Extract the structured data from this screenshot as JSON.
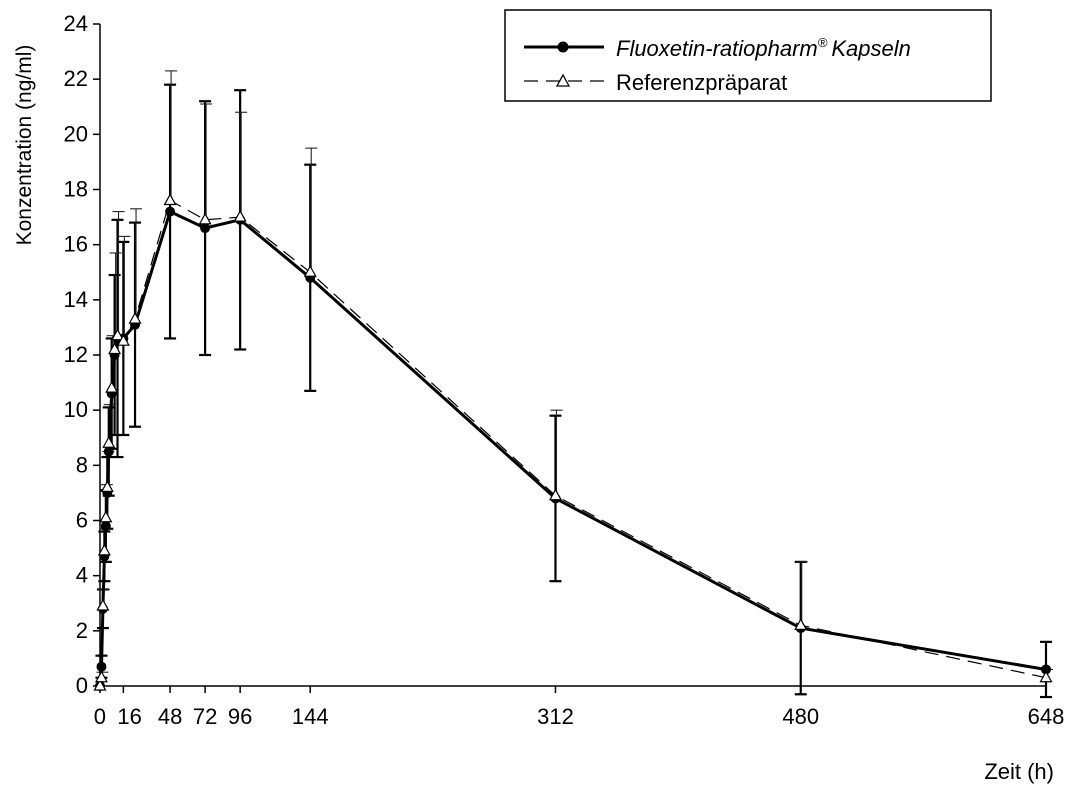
{
  "chart_data": {
    "type": "line",
    "title": "",
    "xlabel": "Zeit (h)",
    "ylabel": "Konzentration (ng/ml)",
    "xlim": [
      0,
      648
    ],
    "ylim": [
      0,
      24
    ],
    "xticks": [
      0,
      16,
      48,
      72,
      96,
      144,
      312,
      480,
      648
    ],
    "xtick_labels": [
      "0",
      "16",
      "48",
      "72",
      "96",
      "144",
      "312",
      "480",
      "648"
    ],
    "yticks": [
      0,
      2,
      4,
      6,
      8,
      10,
      12,
      14,
      16,
      18,
      20,
      22,
      24
    ],
    "grid": false,
    "legend_position": "top-right",
    "series": [
      {
        "name": "Fluoxetin-ratiopharm",
        "name_suffix": "Kapseln",
        "marker": "filled-circle",
        "line": "solid",
        "color": "#000000",
        "x": [
          0,
          1,
          2,
          3,
          4,
          5,
          6,
          8,
          10,
          12,
          16,
          24,
          48,
          72,
          96,
          144,
          312,
          480,
          648
        ],
        "y": [
          0,
          0.7,
          2.8,
          4.7,
          5.8,
          7.0,
          8.5,
          10.6,
          12.0,
          12.6,
          12.6,
          13.1,
          17.2,
          16.6,
          16.9,
          14.8,
          6.8,
          2.1,
          0.6
        ],
        "err": [
          0,
          0.4,
          0.7,
          0.9,
          1.3,
          1.3,
          1.6,
          2.0,
          2.9,
          4.3,
          3.5,
          3.7,
          4.6,
          4.6,
          4.7,
          4.1,
          3.0,
          2.4,
          1.0
        ]
      },
      {
        "name": "Referenzpräparat",
        "marker": "open-triangle",
        "line": "dashed",
        "color": "#000000",
        "x": [
          0,
          1,
          2,
          3,
          4,
          5,
          6,
          8,
          10,
          12,
          16,
          24,
          48,
          72,
          96,
          144,
          312,
          480,
          648
        ],
        "y": [
          0,
          0.3,
          2.9,
          4.9,
          6.1,
          7.2,
          8.8,
          10.8,
          12.2,
          12.7,
          12.5,
          13.3,
          17.6,
          16.9,
          17.0,
          15.0,
          6.9,
          2.2,
          0.3
        ],
        "err": [
          0,
          0.2,
          0.6,
          0.8,
          1.2,
          1.3,
          1.4,
          1.9,
          3.5,
          4.5,
          3.8,
          4.0,
          4.7,
          4.2,
          3.8,
          4.5,
          3.1,
          2.3,
          0.3
        ]
      }
    ]
  }
}
